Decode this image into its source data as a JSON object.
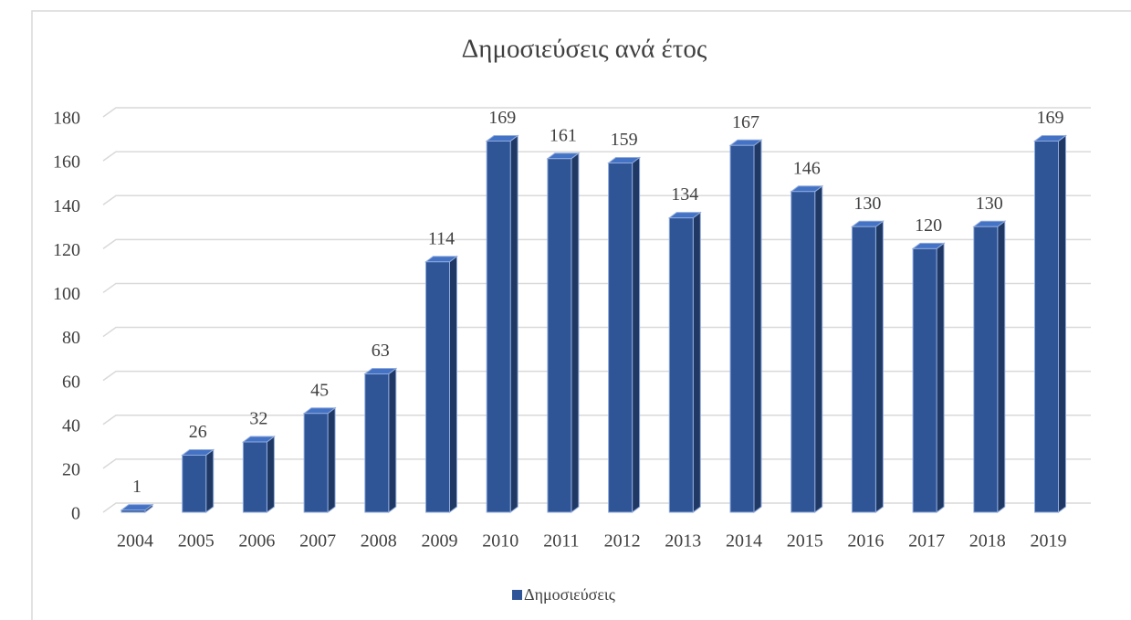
{
  "chart_data": {
    "type": "bar3d",
    "title": "Δημοσιεύσεις ανά έτος",
    "categories": [
      "2004",
      "2005",
      "2006",
      "2007",
      "2008",
      "2009",
      "2010",
      "2011",
      "2012",
      "2013",
      "2014",
      "2015",
      "2016",
      "2017",
      "2018",
      "2019"
    ],
    "series": [
      {
        "name": "Δημοσιεύσεις",
        "color": "#2f5597",
        "values": [
          1,
          26,
          32,
          45,
          63,
          114,
          169,
          161,
          159,
          134,
          167,
          146,
          130,
          120,
          130,
          169
        ]
      }
    ],
    "ylim": [
      0,
      180
    ],
    "yticks": [
      0,
      20,
      40,
      60,
      80,
      100,
      120,
      140,
      160,
      180
    ],
    "grid": true,
    "legend": "bottom"
  }
}
